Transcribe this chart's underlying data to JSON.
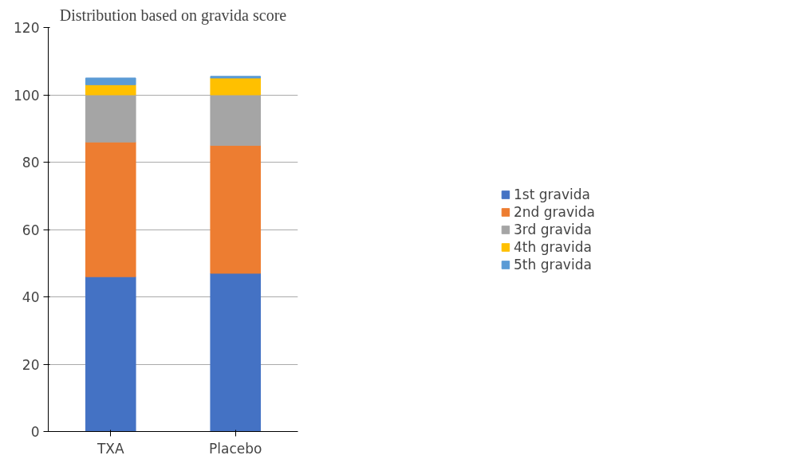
{
  "chart_data": {
    "type": "bar",
    "title": "Distribution based on gravida score",
    "stacked": true,
    "categories": [
      "TXA",
      "Placebo"
    ],
    "series": [
      {
        "name": "1st gravida",
        "color": "#4472c4",
        "values": [
          46,
          47
        ]
      },
      {
        "name": "2nd gravida",
        "color": "#ed7d31",
        "values": [
          40,
          38
        ]
      },
      {
        "name": "3rd gravida",
        "color": "#a5a5a5",
        "values": [
          14,
          15
        ]
      },
      {
        "name": "4th gravida",
        "color": "#ffc000",
        "values": [
          3,
          5
        ]
      },
      {
        "name": "5th gravida",
        "color": "#5b9bd5",
        "values": [
          2,
          0.5
        ]
      }
    ],
    "ylim": [
      0,
      120
    ],
    "yticks": [
      0,
      20,
      40,
      60,
      80,
      100,
      120
    ],
    "grid": "y",
    "legend": "right"
  }
}
